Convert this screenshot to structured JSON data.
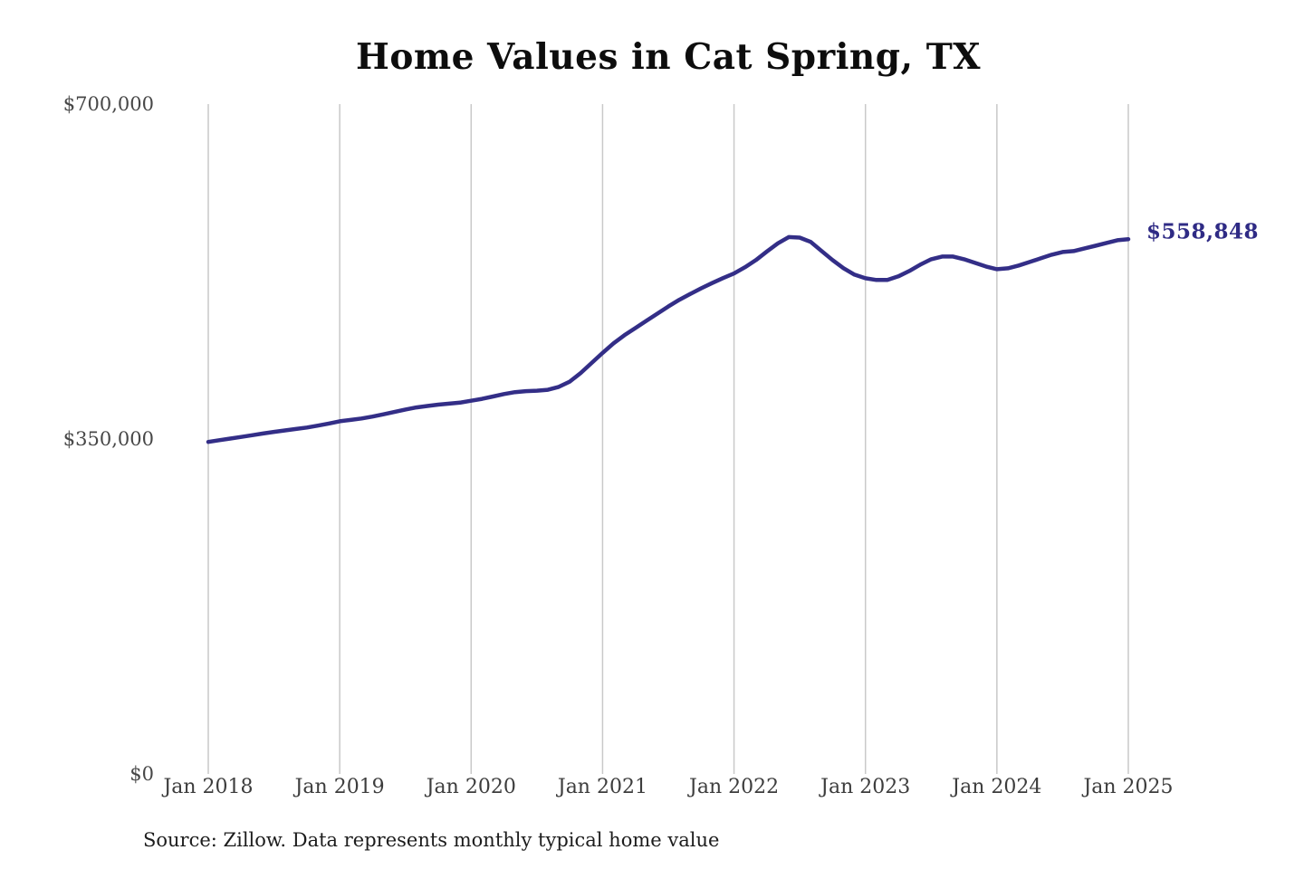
{
  "title": "Home Values in Cat Spring, TX",
  "source_note": "Source: Zillow. Data represents monthly typical home value",
  "colors": {
    "line": "#332e87",
    "end_label": "#2f2b85",
    "grid": "#c9c9c9",
    "axis_text": "#474747",
    "title_text": "#0d0d0d",
    "background": "#ffffff"
  },
  "chart_data": {
    "type": "line",
    "title": "Home Values in Cat Spring, TX",
    "xlabel": "",
    "ylabel": "",
    "ylim": [
      0,
      700000
    ],
    "grid": "vertical-only",
    "legend": "none",
    "x_tick_labels": [
      "Jan 2018",
      "Jan 2019",
      "Jan 2020",
      "Jan 2021",
      "Jan 2022",
      "Jan 2023",
      "Jan 2024",
      "Jan 2025"
    ],
    "y_ticks": [
      {
        "label": "$700,000",
        "value": 700000
      },
      {
        "label": "$350,000",
        "value": 350000
      },
      {
        "label": "$0",
        "value": 0
      }
    ],
    "latest_value_label": "$558,848",
    "latest_value": 558848,
    "series": [
      {
        "name": "Monthly typical home value",
        "x_start": "Jan 2018",
        "x_end": "Jan 2025",
        "cadence": "monthly",
        "values": [
          347000,
          348800,
          350500,
          352200,
          354000,
          355800,
          357500,
          359000,
          360500,
          362000,
          364000,
          366200,
          368500,
          370000,
          371500,
          373500,
          375800,
          378300,
          380800,
          383000,
          384500,
          385900,
          387000,
          388000,
          390000,
          392000,
          394500,
          397000,
          399000,
          400000,
          400500,
          401500,
          404500,
          410000,
          419000,
          429500,
          440000,
          450000,
          458500,
          466000,
          473500,
          481000,
          488500,
          495500,
          501500,
          507500,
          513000,
          518200,
          523000,
          529500,
          537000,
          546000,
          554500,
          561000,
          560500,
          556000,
          546500,
          537000,
          528500,
          521800,
          518000,
          516200,
          516200,
          520000,
          525600,
          532200,
          537900,
          540700,
          540700,
          537900,
          534100,
          530300,
          527500,
          528400,
          531300,
          535000,
          538800,
          542600,
          545400,
          546400,
          549200,
          552000,
          554900,
          557700,
          558848
        ]
      }
    ]
  }
}
